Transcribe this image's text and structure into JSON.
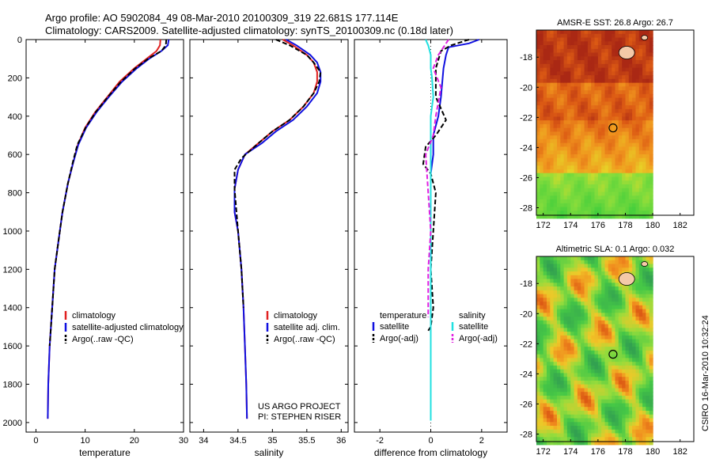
{
  "header": {
    "line1": "Argo profile: AO 5902084_49 08-Mar-2010 20100309_319 22.681S 177.114E",
    "line2": "Climatology: CARS2009. Satellite-adjusted climatology: synTS_20100309.nc (0.18d later)"
  },
  "footer_text": "CSIRO 16-Mar-2010 10:32:24",
  "credit": {
    "line1": "US ARGO PROJECT",
    "line2": "PI: STEPHEN RISER"
  },
  "colors": {
    "climatology": "#e02020",
    "satellite": "#1010e0",
    "argo": "#000000",
    "sat_salinity": "#20e0e0",
    "argo_salinity": "#e020e0"
  },
  "chart_data": [
    {
      "type": "line",
      "xlabel": "temperature",
      "ylabel": "",
      "xlim": [
        -2,
        30
      ],
      "ylim": [
        2050,
        0
      ],
      "xticks": [
        "0",
        "10",
        "20",
        "30"
      ],
      "yticks": [
        "0",
        "200",
        "400",
        "600",
        "800",
        "1000",
        "1200",
        "1400",
        "1600",
        "1800",
        "2000"
      ],
      "legend": [
        "climatology",
        "satellite-adjusted climatology",
        "Argo(..raw -QC)"
      ],
      "series": [
        {
          "name": "climatology",
          "x": [
            25.3,
            25.2,
            24.5,
            22.5,
            20,
            17,
            14.5,
            12,
            10,
            8.5,
            7.6,
            6.5,
            5.4,
            4.6,
            3.8,
            3.3,
            2.8,
            2.5,
            2.4
          ],
          "y": [
            0,
            30,
            60,
            100,
            150,
            220,
            300,
            380,
            460,
            550,
            640,
            750,
            900,
            1050,
            1200,
            1400,
            1600,
            1800,
            1980
          ]
        },
        {
          "name": "satellite-adjusted climatology",
          "x": [
            27,
            26.8,
            25.5,
            23,
            20.5,
            17.5,
            14.8,
            12.3,
            10.2,
            8.6,
            7.6,
            6.5,
            5.4,
            4.6,
            3.8,
            3.3,
            2.8,
            2.5,
            2.4
          ],
          "y": [
            0,
            30,
            60,
            100,
            150,
            220,
            300,
            380,
            460,
            550,
            640,
            750,
            900,
            1050,
            1200,
            1400,
            1600,
            1800,
            1980
          ]
        },
        {
          "name": "Argo(..raw -QC)",
          "x": [
            26.5,
            26.4,
            25.5,
            22.8,
            20.2,
            17.3,
            14.6,
            12.1,
            10.1,
            8.4,
            7.5,
            6.5,
            5.4,
            4.6,
            3.8,
            3.3,
            2.8
          ],
          "y": [
            0,
            30,
            60,
            100,
            150,
            220,
            300,
            380,
            460,
            550,
            640,
            750,
            900,
            1050,
            1200,
            1400,
            1600
          ]
        }
      ]
    },
    {
      "type": "line",
      "xlabel": "salinity",
      "xlim": [
        33.8,
        36.1
      ],
      "ylim": [
        2050,
        0
      ],
      "xticks": [
        "34",
        "34.5",
        "35",
        "35.5",
        "36"
      ],
      "legend": [
        "climatology",
        "satellite adj. clim.",
        "Argo(..raw -QC)"
      ],
      "series": [
        {
          "name": "climatology",
          "x": [
            35.15,
            35.3,
            35.5,
            35.6,
            35.65,
            35.65,
            35.6,
            35.45,
            35.25,
            35,
            34.8,
            34.6,
            34.5,
            34.45,
            34.45,
            34.5,
            34.55,
            34.58,
            34.6,
            34.62,
            34.63
          ],
          "y": [
            0,
            30,
            80,
            120,
            170,
            220,
            280,
            350,
            420,
            480,
            540,
            600,
            680,
            780,
            900,
            1000,
            1200,
            1400,
            1600,
            1800,
            1980
          ]
        },
        {
          "name": "satellite adj. clim.",
          "x": [
            35.2,
            35.35,
            35.55,
            35.65,
            35.7,
            35.7,
            35.65,
            35.5,
            35.3,
            35.05,
            34.85,
            34.6,
            34.5,
            34.45,
            34.45,
            34.5,
            34.55,
            34.58,
            34.6,
            34.62,
            34.63
          ],
          "y": [
            0,
            30,
            80,
            120,
            170,
            220,
            280,
            350,
            420,
            480,
            540,
            600,
            680,
            780,
            900,
            1000,
            1200,
            1400,
            1600,
            1800,
            1980
          ]
        },
        {
          "name": "Argo(..raw -QC)",
          "x": [
            35.05,
            35.25,
            35.5,
            35.6,
            35.7,
            35.68,
            35.6,
            35.45,
            35.25,
            35,
            34.8,
            34.55,
            34.45,
            34.45,
            34.5,
            34.55,
            34.58
          ],
          "y": [
            0,
            30,
            80,
            120,
            170,
            220,
            280,
            350,
            420,
            480,
            540,
            620,
            680,
            780,
            1000,
            1200,
            1400
          ]
        }
      ]
    },
    {
      "type": "line",
      "xlabel": "difference from climatology",
      "xlim": [
        -3,
        3
      ],
      "ylim": [
        2050,
        0
      ],
      "xticks": [
        "-2",
        "0",
        "2"
      ],
      "legend_groups": [
        {
          "title": "temperature",
          "items": [
            "satellite",
            "Argo(-adj)"
          ]
        },
        {
          "title": "salinity",
          "items": [
            "satellite",
            "Argo(-adj)"
          ]
        }
      ],
      "series": [
        {
          "name": "temperature satellite",
          "x": [
            1.9,
            1.5,
            0.7,
            0.6,
            0.5,
            0.4,
            0.3,
            0.2,
            0.1,
            0.1,
            0.1,
            0,
            0,
            0,
            0,
            0,
            0,
            0
          ],
          "y": [
            0,
            20,
            40,
            80,
            150,
            300,
            400,
            450,
            500,
            550,
            600,
            700,
            800,
            1000,
            1200,
            1500,
            1800,
            1990
          ]
        },
        {
          "name": "temperature Argo(-adj)",
          "x": [
            1.5,
            0.8,
            0.4,
            0.2,
            0.2,
            0.6,
            0.4,
            0.2,
            -0.2,
            -0.3,
            0,
            0.2,
            0.1,
            0,
            0.1,
            0,
            -0.1
          ],
          "y": [
            0,
            30,
            60,
            150,
            300,
            420,
            460,
            500,
            560,
            650,
            700,
            800,
            1000,
            1200,
            1400,
            1500,
            1520
          ]
        },
        {
          "name": "salinity satellite",
          "x": [
            -0.2,
            -0.1,
            0,
            0,
            0.05,
            0.1,
            0,
            0,
            0,
            0,
            0,
            0
          ],
          "y": [
            0,
            30,
            80,
            150,
            200,
            300,
            400,
            500,
            800,
            1200,
            1600,
            1990
          ]
        },
        {
          "name": "salinity Argo(-adj)",
          "x": [
            0.7,
            0.5,
            0.3,
            0.1,
            0.4,
            0.2,
            0.1,
            -0.2,
            -0.1,
            0,
            -0.1,
            -0.1
          ],
          "y": [
            0,
            40,
            80,
            150,
            250,
            400,
            500,
            600,
            800,
            1000,
            1200,
            1450
          ]
        }
      ]
    },
    {
      "type": "heatmap",
      "title": "AMSR-E SST: 26.8 Argo: 26.7",
      "xlim": [
        171.5,
        183
      ],
      "ylim": [
        -28.5,
        -16.2
      ],
      "xticks": [
        "172",
        "174",
        "176",
        "178",
        "180",
        "182"
      ],
      "yticks": [
        "-18",
        "-20",
        "-22",
        "-24",
        "-26",
        "-28"
      ],
      "marker": {
        "lon": 177.1,
        "lat": -22.7
      },
      "data_lon_max": 180
    },
    {
      "type": "heatmap",
      "title": "Altimetric SLA: 0.1 Argo: 0.032",
      "xlim": [
        171.5,
        183
      ],
      "ylim": [
        -28.5,
        -16.2
      ],
      "xticks": [
        "172",
        "174",
        "176",
        "178",
        "180",
        "182"
      ],
      "yticks": [
        "-18",
        "-20",
        "-22",
        "-24",
        "-26",
        "-28"
      ],
      "marker": {
        "lon": 177.1,
        "lat": -22.7
      },
      "data_lon_max": 180
    }
  ]
}
